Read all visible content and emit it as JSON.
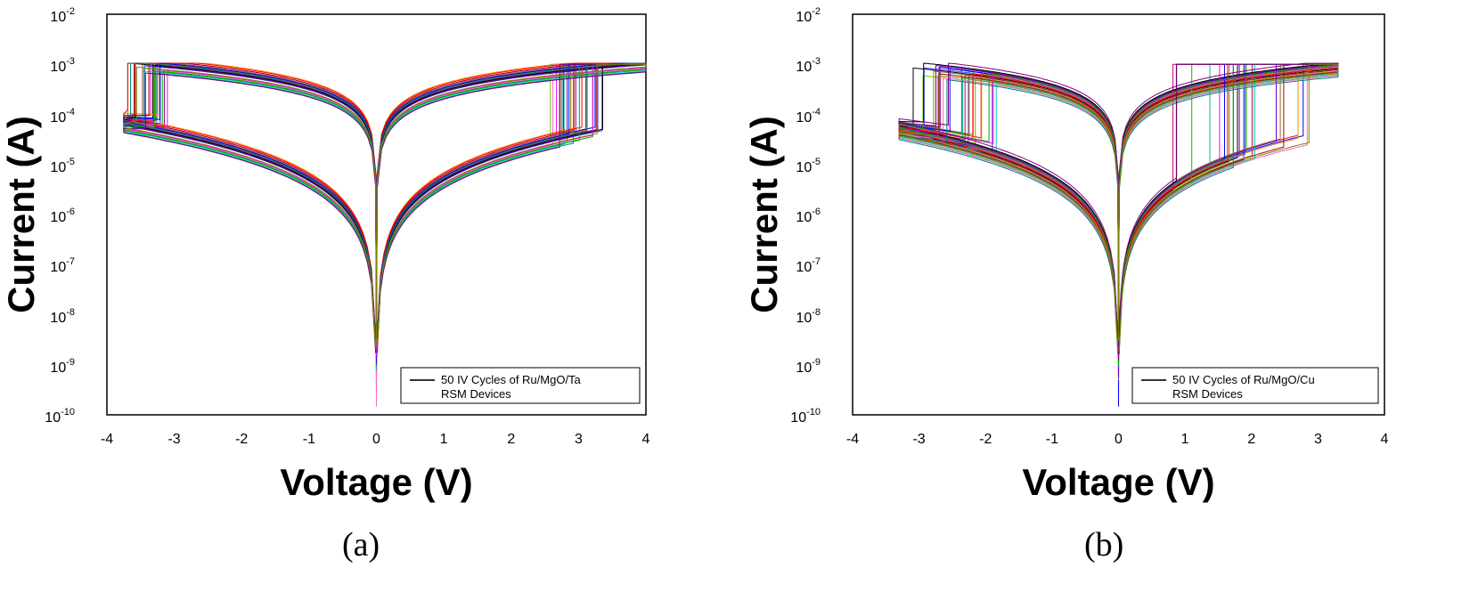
{
  "chart_data": [
    {
      "type": "line",
      "panel_label": "(a)",
      "xlabel": "Voltage (V)",
      "ylabel": "Current (A)",
      "xlim": [
        -4,
        4
      ],
      "ylim": [
        1e-10,
        0.01
      ],
      "y_scale": "log",
      "x_ticks": [
        "-4",
        "-3",
        "-2",
        "-1",
        "0",
        "1",
        "2",
        "3",
        "4"
      ],
      "y_ticks": [
        {
          "base": "10",
          "exp": "-2"
        },
        {
          "base": "10",
          "exp": "-3"
        },
        {
          "base": "10",
          "exp": "-4"
        },
        {
          "base": "10",
          "exp": "-5"
        },
        {
          "base": "10",
          "exp": "-6"
        },
        {
          "base": "10",
          "exp": "-7"
        },
        {
          "base": "10",
          "exp": "-8"
        },
        {
          "base": "10",
          "exp": "-9"
        },
        {
          "base": "10",
          "exp": "-10"
        }
      ],
      "legend": {
        "line1": "50 IV Cycles of Ru/MgO/Ta",
        "line2": "RSM Devices",
        "position": "bottom-right"
      },
      "n_cycles": 50,
      "sweep": {
        "v_min": -3.75,
        "v_max": 4,
        "compliance_current": 0.001,
        "set_voltage_range": [
          2.5,
          3.4
        ],
        "reset_voltage_range": [
          -3.7,
          -3.1
        ]
      },
      "series_envelope": {
        "LRS_current_at_1V": 0.0003,
        "HRS_current_at_1V": 4e-06,
        "HRS_current_at_-3.5V": 6e-05,
        "LRS_current_at_-3.5V": 0.0007
      }
    },
    {
      "type": "line",
      "panel_label": "(b)",
      "xlabel": "Voltage (V)",
      "ylabel": "Current (A)",
      "xlim": [
        -4,
        4
      ],
      "ylim": [
        1e-10,
        0.01
      ],
      "y_scale": "log",
      "x_ticks": [
        "-4",
        "-3",
        "-2",
        "-1",
        "0",
        "1",
        "2",
        "3",
        "4"
      ],
      "y_ticks": [
        {
          "base": "10",
          "exp": "-2"
        },
        {
          "base": "10",
          "exp": "-3"
        },
        {
          "base": "10",
          "exp": "-4"
        },
        {
          "base": "10",
          "exp": "-5"
        },
        {
          "base": "10",
          "exp": "-6"
        },
        {
          "base": "10",
          "exp": "-7"
        },
        {
          "base": "10",
          "exp": "-8"
        },
        {
          "base": "10",
          "exp": "-9"
        },
        {
          "base": "10",
          "exp": "-10"
        }
      ],
      "legend": {
        "line1": "50 IV Cycles of Ru/MgO/Cu",
        "line2": "RSM Devices",
        "position": "bottom-right"
      },
      "n_cycles": 50,
      "sweep": {
        "v_min": -3.3,
        "v_max": 3.3,
        "compliance_current": 0.001,
        "set_voltage_range": [
          0.8,
          3.1
        ],
        "reset_voltage_range": [
          -3.1,
          -1.8
        ]
      },
      "series_envelope": {
        "LRS_current_at_1V": 0.0003,
        "HRS_current_at_1V": 3e-06,
        "HRS_current_at_-3V": 3e-05,
        "LRS_current_at_-3V": 0.0015
      }
    }
  ],
  "colors": [
    "#000000",
    "#ff0000",
    "#0000ff",
    "#ff00ff",
    "#00aa00",
    "#008080",
    "#800080",
    "#808000",
    "#00cccc",
    "#ff8800",
    "#4444ff",
    "#cc0066",
    "#66cc00",
    "#996633",
    "#3333aa",
    "#ff66cc",
    "#00bb88",
    "#aa0000",
    "#999900",
    "#6600cc"
  ]
}
